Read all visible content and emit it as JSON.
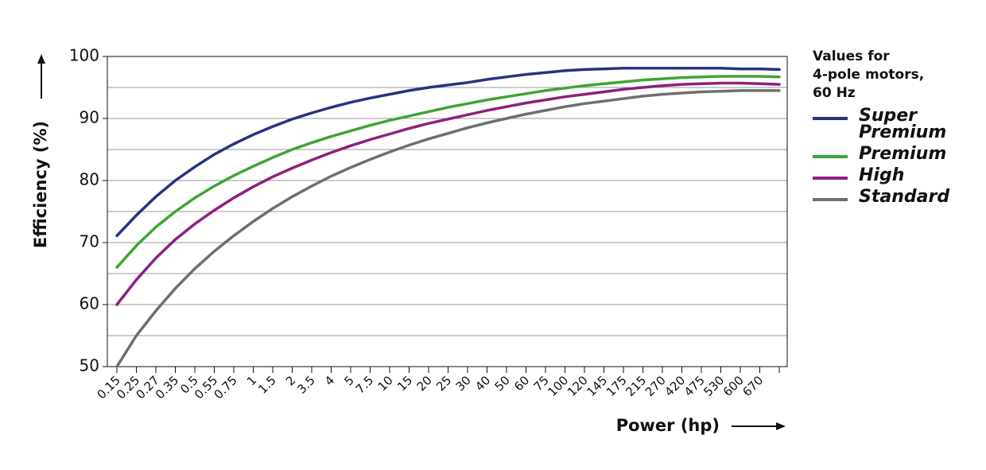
{
  "chart_data": {
    "type": "line",
    "y_label": "Efficiency (%)",
    "x_label": "Power (hp)",
    "legend_title": [
      "Values for",
      "4-pole motors,",
      "60 Hz"
    ],
    "legend_position": "right",
    "categories": [
      "0.15",
      "0.25",
      "0.27",
      "0.35",
      "0.5",
      "0.55",
      "0.75",
      "1",
      "1.5",
      "2",
      "3.5",
      "4",
      "5",
      "7.5",
      "10",
      "15",
      "20",
      "25",
      "30",
      "40",
      "50",
      "60",
      "75",
      "100",
      "120",
      "145",
      "175",
      "215",
      "270",
      "420",
      "475",
      "530",
      "600",
      "670",
      null
    ],
    "series": [
      {
        "name": "Super Premium",
        "color": "#27337f",
        "values": [
          71.1,
          74.4,
          77.4,
          80,
          82.2,
          84.2,
          85.9,
          87.4,
          88.7,
          89.9,
          90.9,
          91.8,
          92.6,
          93.3,
          93.9,
          94.5,
          95,
          95.4,
          95.8,
          96.3,
          96.7,
          97.1,
          97.4,
          97.7,
          97.9,
          98,
          98.1,
          98.1,
          98.1,
          98.1,
          98.1,
          98.1,
          98,
          98,
          97.9
        ]
      },
      {
        "name": "Premium",
        "color": "#3fa535",
        "values": [
          66,
          69.5,
          72.5,
          75,
          77.2,
          79.1,
          80.8,
          82.3,
          83.7,
          85,
          86.1,
          87.1,
          88,
          88.9,
          89.7,
          90.4,
          91.1,
          91.8,
          92.4,
          93,
          93.5,
          94,
          94.5,
          94.9,
          95.3,
          95.6,
          95.9,
          96.2,
          96.4,
          96.6,
          96.7,
          96.8,
          96.8,
          96.8,
          96.7
        ]
      },
      {
        "name": "High",
        "color": "#8e1f80",
        "values": [
          60,
          64,
          67.5,
          70.5,
          73,
          75.2,
          77.2,
          79,
          80.6,
          82,
          83.3,
          84.5,
          85.6,
          86.6,
          87.5,
          88.4,
          89.2,
          89.9,
          90.6,
          91.3,
          91.9,
          92.5,
          93,
          93.5,
          93.9,
          94.3,
          94.7,
          95,
          95.3,
          95.5,
          95.6,
          95.7,
          95.7,
          95.6,
          95.5
        ]
      },
      {
        "name": "Standard",
        "color": "#6f6f6f",
        "values": [
          50,
          55,
          59,
          62.6,
          65.8,
          68.6,
          71.1,
          73.4,
          75.5,
          77.4,
          79.1,
          80.7,
          82.1,
          83.4,
          84.6,
          85.7,
          86.7,
          87.6,
          88.5,
          89.3,
          90,
          90.7,
          91.3,
          91.9,
          92.4,
          92.8,
          93.2,
          93.6,
          93.9,
          94.1,
          94.3,
          94.4,
          94.5,
          94.5,
          94.5
        ]
      }
    ],
    "ylim": [
      50,
      100
    ],
    "yticks": [
      50,
      60,
      70,
      80,
      90,
      100
    ],
    "minor_yticks": [
      55,
      65,
      75,
      85,
      95
    ],
    "grid": true
  }
}
